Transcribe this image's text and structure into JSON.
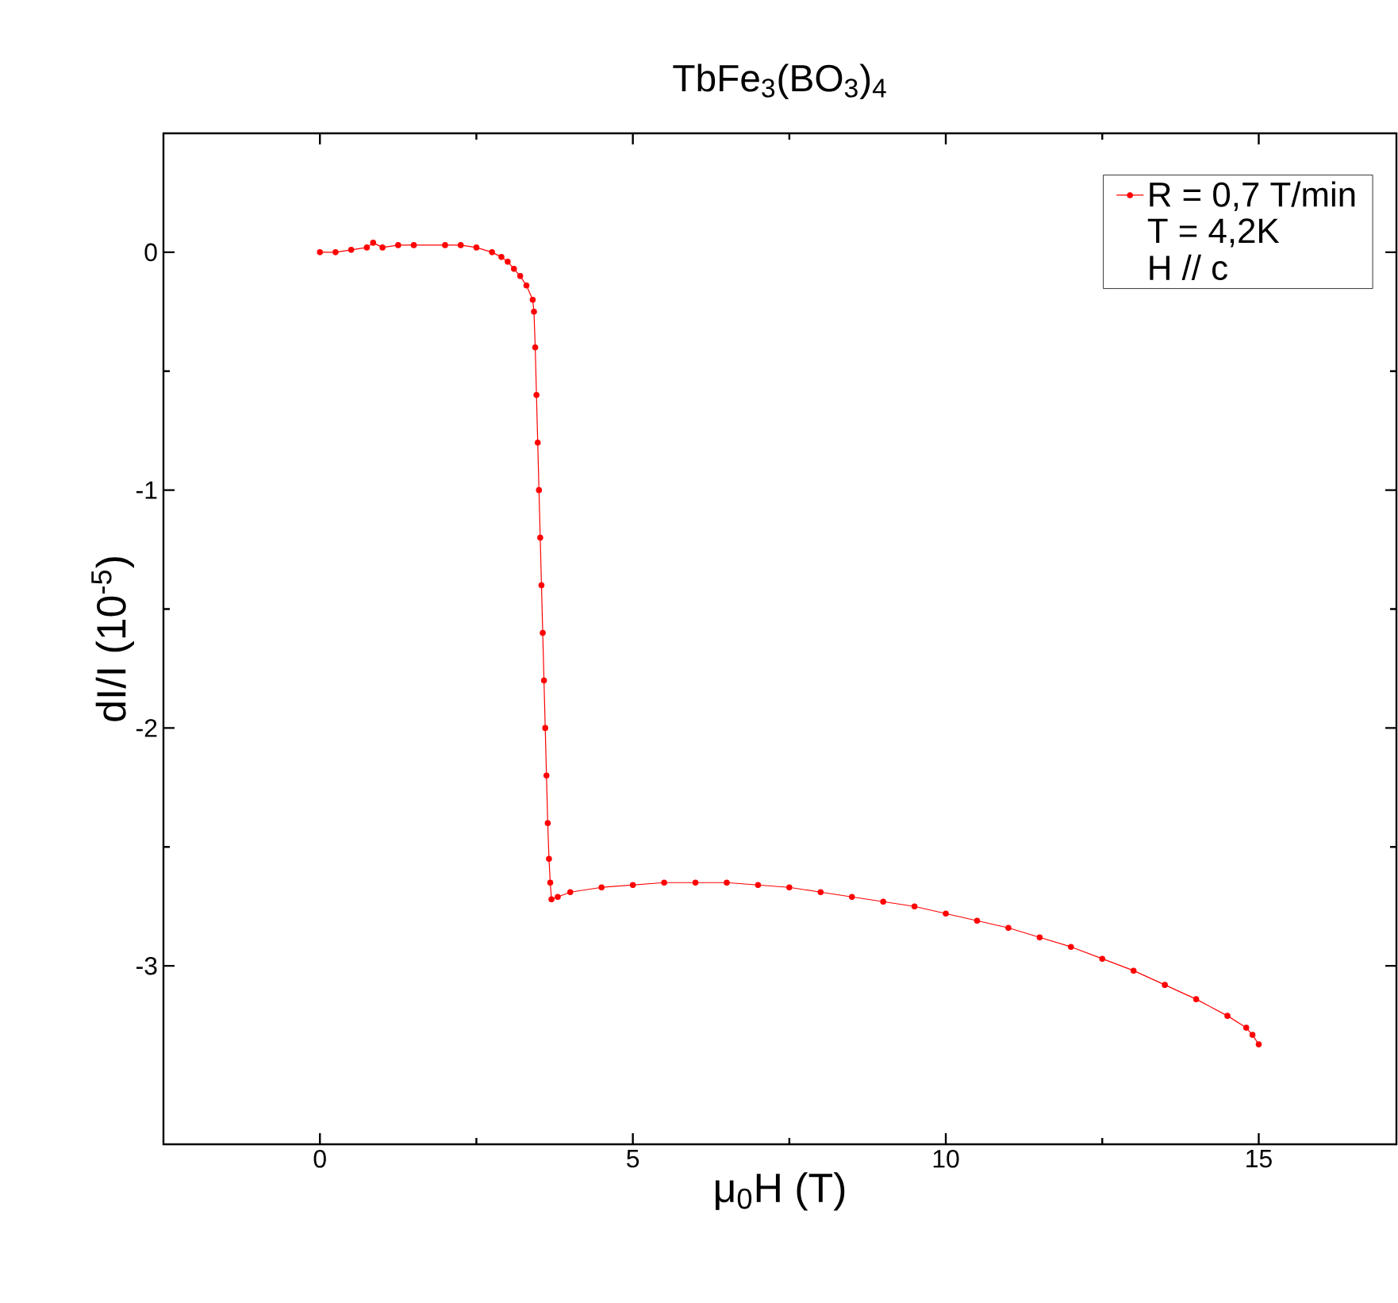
{
  "chart_data": {
    "type": "line",
    "title": "TbFe$_{3}$(BO$_{3}$)$_{4}$",
    "xlabel": "μ$_{0}$H (T)",
    "ylabel": "dI/I (10$^{-5}$)",
    "annotations": [
      "T = 4,2K",
      "H // c"
    ],
    "xlim": [
      -2.5,
      17.2
    ],
    "ylim": [
      -3.75,
      0.5
    ],
    "xticks": [
      0,
      5,
      10,
      15
    ],
    "yticks": [
      -3,
      -2,
      -1,
      0
    ],
    "legend": "top right",
    "marker": "circle",
    "line_style": "solid",
    "grid": false,
    "series": [
      {
        "name": "R = 0,7 T/min",
        "color": "#ff0000",
        "x": [
          0,
          0.25,
          0.5,
          0.75,
          0.85,
          1,
          1.25,
          1.5,
          2,
          2.25,
          2.5,
          2.75,
          2.9,
          3.0,
          3.1,
          3.2,
          3.3,
          3.4,
          3.42,
          3.44,
          3.46,
          3.48,
          3.5,
          3.52,
          3.54,
          3.56,
          3.58,
          3.6,
          3.62,
          3.64,
          3.66,
          3.68,
          3.7,
          3.8,
          4,
          4.5,
          5,
          5.5,
          6,
          6.5,
          7,
          7.5,
          8,
          8.5,
          9,
          9.5,
          10,
          10.5,
          11,
          11.5,
          12,
          12.5,
          13,
          13.5,
          14,
          14.5,
          14.8,
          14.9,
          15
        ],
        "values": [
          0,
          0.0,
          0.01,
          0.02,
          0.04,
          0.02,
          0.03,
          0.03,
          0.03,
          0.03,
          0.02,
          0.0,
          -0.02,
          -0.04,
          -0.07,
          -0.1,
          -0.14,
          -0.2,
          -0.25,
          -0.4,
          -0.6,
          -0.8,
          -1.0,
          -1.2,
          -1.4,
          -1.6,
          -1.8,
          -2.0,
          -2.2,
          -2.4,
          -2.55,
          -2.65,
          -2.72,
          -2.71,
          -2.69,
          -2.67,
          -2.66,
          -2.65,
          -2.65,
          -2.65,
          -2.66,
          -2.67,
          -2.69,
          -2.71,
          -2.73,
          -2.75,
          -2.78,
          -2.81,
          -2.84,
          -2.88,
          -2.92,
          -2.97,
          -3.02,
          -3.08,
          -3.14,
          -3.21,
          -3.26,
          -3.29,
          -3.33
        ]
      }
    ]
  }
}
